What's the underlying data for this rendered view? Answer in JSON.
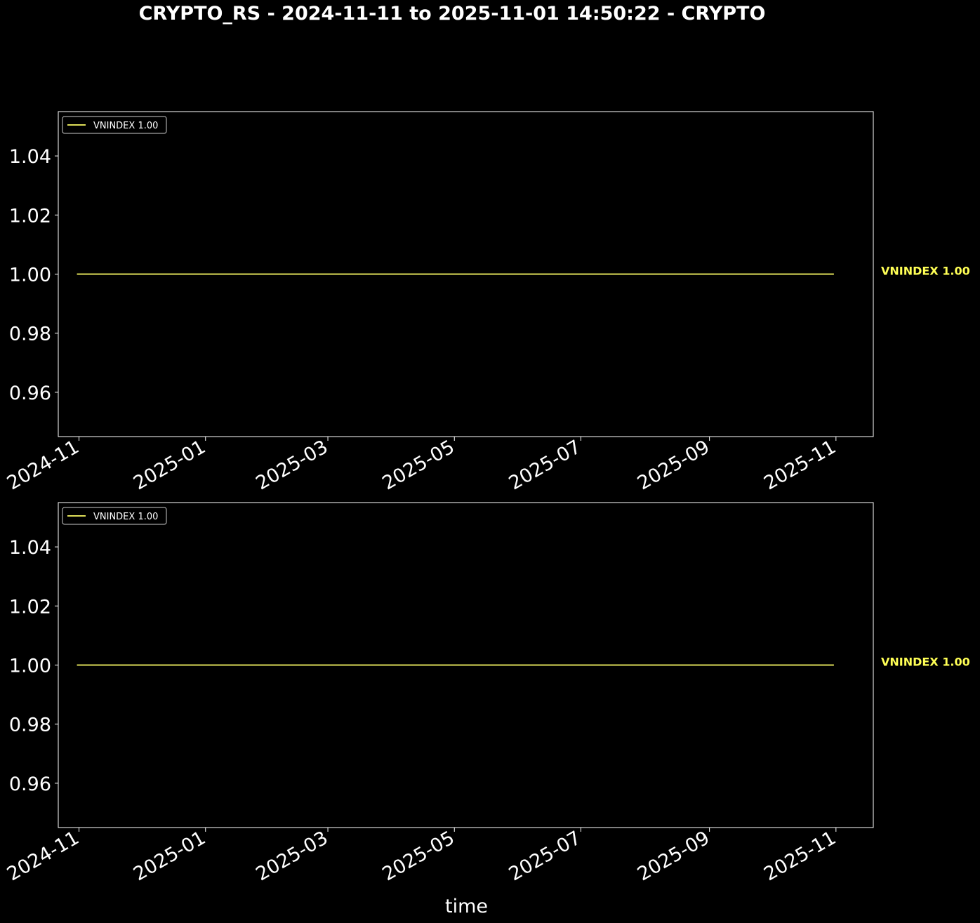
{
  "title": "CRYPTO_RS - 2024-11-11 to 2025-11-01 14:50:22 - CRYPTO",
  "colors": {
    "background": "#000000",
    "axes": "#ffffff",
    "series": "#ffff66",
    "end_label": "#ffff55"
  },
  "chart_data": [
    {
      "type": "line",
      "xlabel": "",
      "ylabel": "",
      "xlim": [
        "2024-10-22",
        "2025-11-19"
      ],
      "ylim": [
        0.945,
        1.055
      ],
      "x_ticks": [
        "2024-11",
        "2025-01",
        "2025-03",
        "2025-05",
        "2025-07",
        "2025-09",
        "2025-11"
      ],
      "y_ticks": [
        "0.96",
        "0.98",
        "1.00",
        "1.02",
        "1.04"
      ],
      "series": [
        {
          "name": "VNINDEX 1.00",
          "x": [
            "2024-10-31",
            "2025-10-31"
          ],
          "values": [
            1.0,
            1.0
          ]
        }
      ],
      "legend": "top-left",
      "end_label": "VNINDEX 1.00",
      "grid": false
    },
    {
      "type": "line",
      "xlabel": "time",
      "ylabel": "",
      "xlim": [
        "2024-10-22",
        "2025-11-19"
      ],
      "ylim": [
        0.945,
        1.055
      ],
      "x_ticks": [
        "2024-11",
        "2025-01",
        "2025-03",
        "2025-05",
        "2025-07",
        "2025-09",
        "2025-11"
      ],
      "y_ticks": [
        "0.96",
        "0.98",
        "1.00",
        "1.02",
        "1.04"
      ],
      "series": [
        {
          "name": "VNINDEX 1.00",
          "x": [
            "2024-10-31",
            "2025-10-31"
          ],
          "values": [
            1.0,
            1.0
          ]
        }
      ],
      "legend": "top-left",
      "end_label": "VNINDEX 1.00",
      "grid": false
    }
  ]
}
